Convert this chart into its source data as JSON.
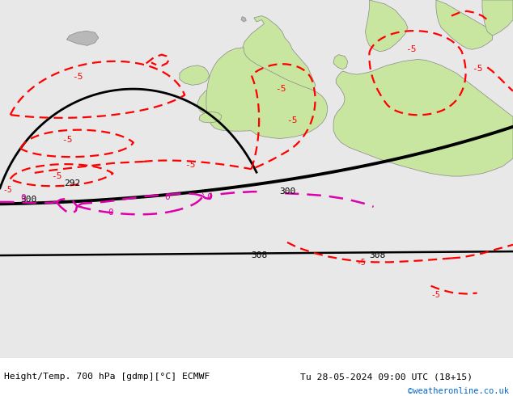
{
  "title_left": "Height/Temp. 700 hPa [gdmp][°C] ECMWF",
  "title_right": "Tu 28-05-2024 09:00 UTC (18+15)",
  "copyright": "©weatheronline.co.uk",
  "bg_color": "#e8e8e8",
  "land_color_green": "#c8e6a0",
  "land_color_gray": "#b8b8b8",
  "coast_color": "#888888",
  "fig_width": 6.34,
  "fig_height": 4.9,
  "dpi": 100
}
